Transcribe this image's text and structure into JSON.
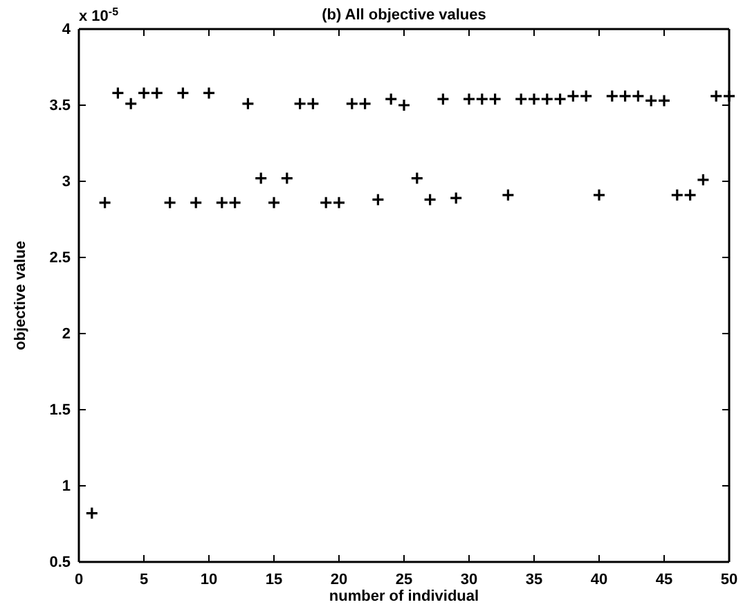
{
  "chart_data": {
    "type": "scatter",
    "title": "(b) All objective values",
    "xlabel": "number of individual",
    "ylabel": "objective value",
    "annotations": [
      "x 10$^{-5}$"
    ],
    "x": [
      1,
      2,
      3,
      4,
      5,
      6,
      7,
      8,
      9,
      10,
      11,
      12,
      13,
      14,
      15,
      16,
      17,
      18,
      19,
      20,
      21,
      22,
      23,
      24,
      25,
      26,
      27,
      28,
      29,
      30,
      31,
      32,
      33,
      34,
      35,
      36,
      37,
      38,
      39,
      40,
      41,
      42,
      43,
      44,
      45,
      46,
      47,
      48,
      49,
      50
    ],
    "values": [
      0.82,
      2.86,
      3.58,
      3.51,
      3.58,
      3.58,
      2.86,
      3.58,
      2.86,
      3.58,
      2.86,
      2.86,
      3.51,
      3.02,
      2.86,
      3.02,
      3.51,
      3.51,
      2.86,
      2.86,
      3.51,
      3.51,
      2.88,
      3.54,
      3.5,
      3.02,
      2.88,
      3.54,
      2.89,
      3.54,
      3.54,
      3.54,
      2.91,
      3.54,
      3.54,
      3.54,
      3.54,
      3.56,
      3.56,
      2.91,
      3.56,
      3.56,
      3.56,
      3.53,
      3.53,
      2.91,
      2.91,
      3.01,
      3.56,
      3.56
    ],
    "color": "#000000",
    "marker": "cross",
    "xlim": [
      0,
      50
    ],
    "xticks": [
      0,
      5,
      10,
      15,
      20,
      25,
      30,
      35,
      40,
      45,
      50
    ],
    "ylim": [
      0.5,
      4
    ],
    "yticks": [
      0.5,
      1,
      1.5,
      2,
      2.5,
      3,
      3.5,
      4
    ],
    "grid": false
  }
}
